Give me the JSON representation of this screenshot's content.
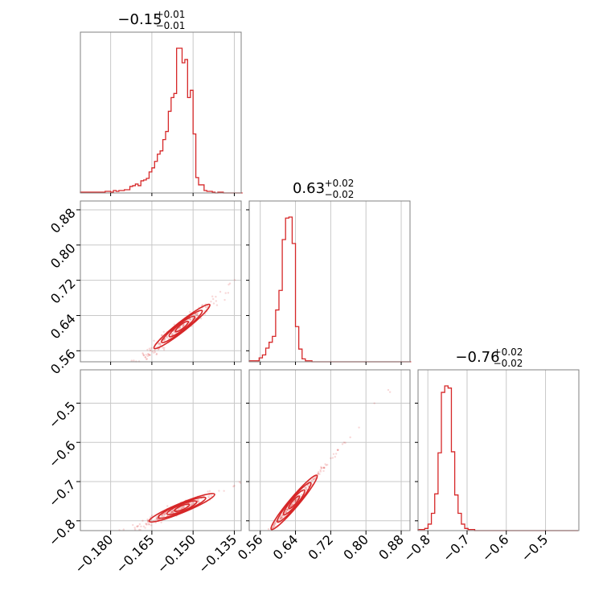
{
  "chart_data": {
    "type": "corner",
    "color": "#d62728",
    "grid": true,
    "parameters": [
      {
        "median": "−0.15",
        "plus": "+0.01",
        "minus": "−0.01",
        "ticks": [
          -0.18,
          -0.165,
          -0.15,
          -0.135
        ],
        "tick_labels": [
          "−0.180",
          "−0.165",
          "−0.150",
          "−0.135"
        ],
        "range": [
          -0.191,
          -0.1325
        ]
      },
      {
        "median": "0.63",
        "plus": "+0.02",
        "minus": "−0.02",
        "ticks": [
          0.56,
          0.64,
          0.72,
          0.8,
          0.88
        ],
        "tick_labels": [
          "0.56",
          "0.64",
          "0.72",
          "0.80",
          "0.88"
        ],
        "range": [
          0.535,
          0.9
        ]
      },
      {
        "median": "−0.76",
        "plus": "+0.02",
        "minus": "−0.02",
        "ticks": [
          -0.8,
          -0.7,
          -0.6,
          -0.5
        ],
        "tick_labels": [
          "−0.8",
          "−0.7",
          "−0.6",
          "−0.5"
        ],
        "range": [
          -0.825,
          -0.415
        ]
      }
    ],
    "histograms": [
      {
        "bin_start": -0.191,
        "bin_width": 0.001,
        "counts": [
          1,
          1,
          1,
          1,
          1,
          1,
          1,
          1,
          1,
          2,
          2,
          1,
          3,
          2,
          3,
          3,
          4,
          4,
          8,
          9,
          11,
          9,
          15,
          16,
          18,
          26,
          31,
          39,
          48,
          52,
          66,
          76,
          101,
          118,
          123,
          179,
          179,
          161,
          165,
          118,
          127,
          73,
          19,
          10,
          10,
          3,
          2,
          2,
          1,
          0,
          1,
          1,
          0,
          0,
          0,
          0,
          0,
          0,
          0
        ]
      },
      {
        "bin_start": 0.535,
        "bin_width": 0.0075,
        "counts": [
          1,
          1,
          1,
          4,
          7,
          14,
          20,
          26,
          53,
          73,
          125,
          147,
          148,
          121,
          36,
          13,
          3,
          1,
          1,
          0,
          0,
          0,
          0,
          0,
          0,
          0,
          0,
          0,
          0,
          0,
          0,
          0,
          0,
          0,
          0,
          0,
          0,
          0,
          0,
          0,
          0,
          0,
          0,
          0,
          0,
          0,
          0,
          0,
          0
        ]
      },
      {
        "bin_start": -0.825,
        "bin_width": 0.0085,
        "counts": [
          1,
          1,
          2,
          6,
          16,
          34,
          72,
          128,
          134,
          132,
          73,
          33,
          16,
          6,
          2,
          1,
          1,
          0,
          0,
          0,
          0,
          0,
          0,
          0,
          0,
          0,
          0,
          0,
          0,
          0,
          0,
          0,
          0,
          0,
          0,
          0,
          0,
          0,
          0,
          0,
          0,
          0,
          0,
          0,
          0,
          0,
          0,
          0
        ]
      }
    ],
    "correlations": [
      {
        "row": 1,
        "col": 0,
        "slope": 4.9,
        "intercept": 1.37,
        "scatter": 0.008
      },
      {
        "row": 2,
        "col": 0,
        "slope": 2.9,
        "intercept": -0.32,
        "scatter": 0.006
      },
      {
        "row": 2,
        "col": 1,
        "slope": 1.33,
        "intercept": -1.6,
        "scatter": 0.005
      }
    ]
  }
}
